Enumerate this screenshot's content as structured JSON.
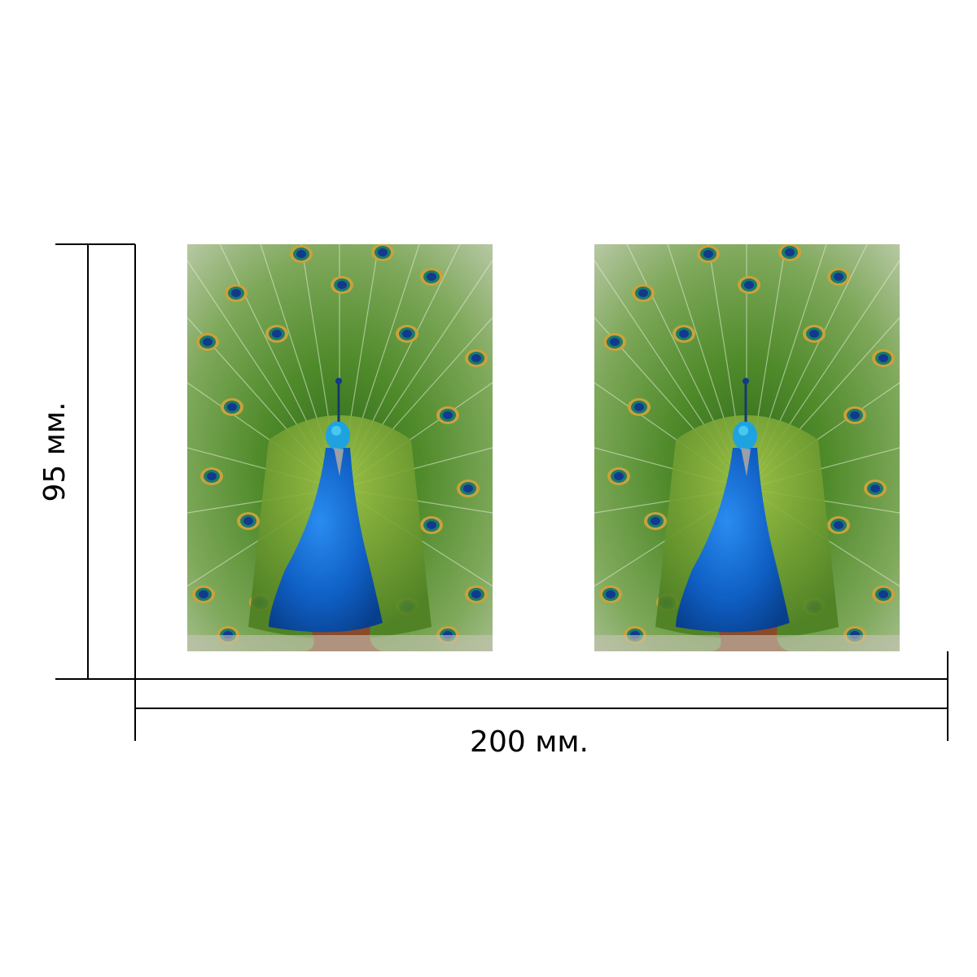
{
  "dimensions": {
    "width_label": "200 мм.",
    "height_label": "95 мм."
  },
  "panels": [
    {
      "subject": "peacock"
    },
    {
      "subject": "peacock"
    }
  ],
  "colors": {
    "line": "#000000",
    "background": "#ffffff",
    "peacock_body": "#1060c8",
    "plumage_green": "#5a8a2a",
    "eyespot": "#1a3a8a"
  }
}
